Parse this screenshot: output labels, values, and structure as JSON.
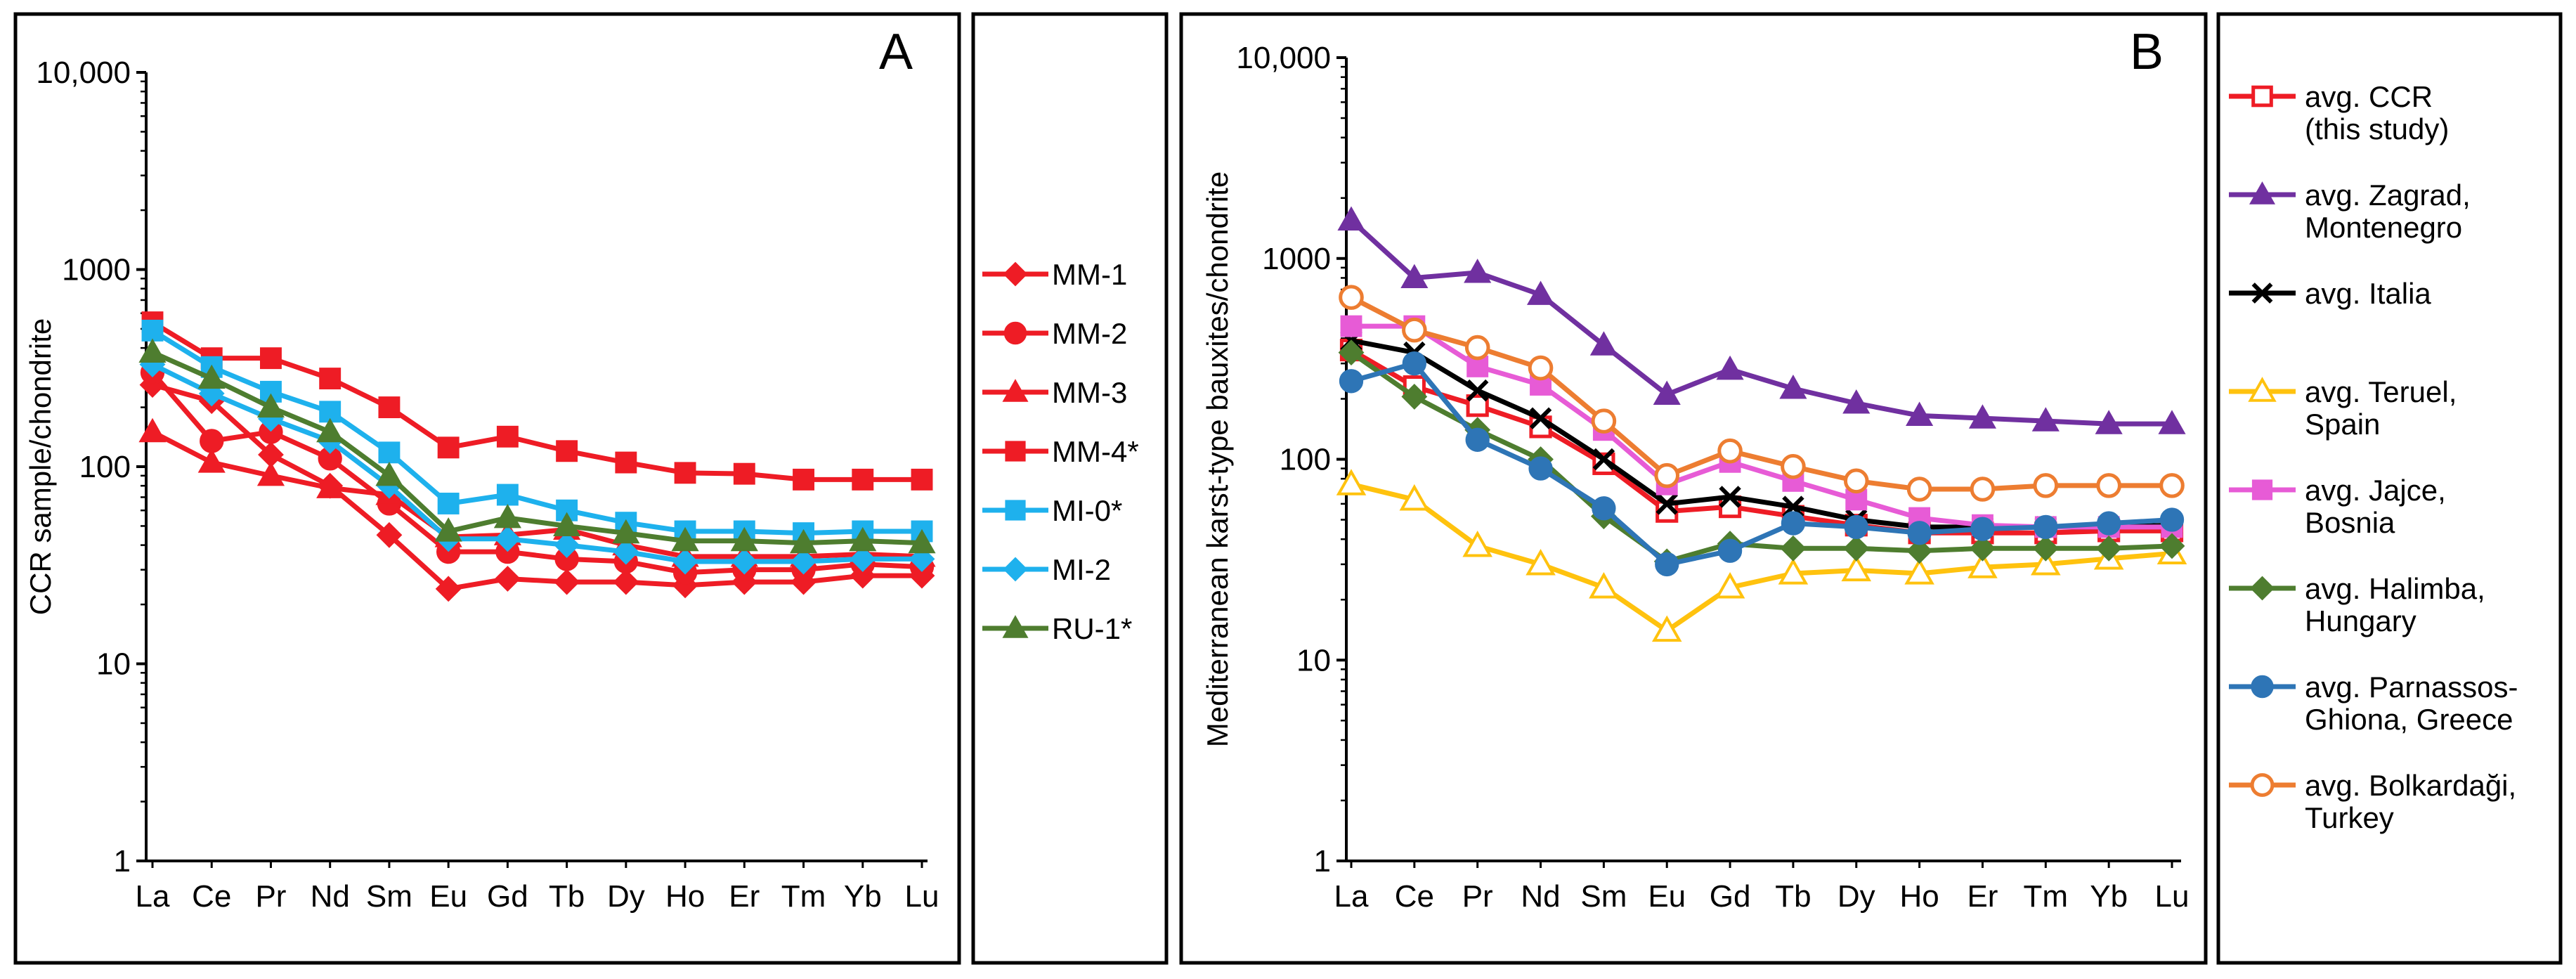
{
  "colors": {
    "red": "#ee1c25",
    "cyan": "#1eb1ed",
    "olive": "#4e7d2f",
    "purple": "#7030a0",
    "black": "#000000",
    "yellow": "#ffc20e",
    "magenta": "#e75bd6",
    "blue": "#2e75b6",
    "orange": "#ed7d31"
  },
  "chart_data": [
    {
      "type": "line",
      "panel_label": "A",
      "title": "",
      "xlabel": "",
      "ylabel": "CCR sample/chondrite",
      "yscale": "log",
      "ylim": [
        1,
        10000
      ],
      "y_ticks": [
        "1",
        "10",
        "100",
        "1000",
        "10,000"
      ],
      "grid": false,
      "legend_position": "right (separate box)",
      "categories": [
        "La",
        "Ce",
        "Pr",
        "Nd",
        "Sm",
        "Eu",
        "Gd",
        "Tb",
        "Dy",
        "Ho",
        "Er",
        "Tm",
        "Yb",
        "Lu"
      ],
      "series": [
        {
          "name": "MM-1",
          "color": "red",
          "marker": "diamond",
          "values": [
            260,
            215,
            115,
            80,
            45,
            24,
            27,
            26,
            26,
            25,
            26,
            26,
            28,
            28
          ]
        },
        {
          "name": "MM-2",
          "color": "red",
          "marker": "circle",
          "values": [
            300,
            135,
            150,
            110,
            65,
            37,
            37,
            34,
            33,
            29,
            30,
            30,
            32,
            31
          ]
        },
        {
          "name": "MM-3",
          "color": "red",
          "marker": "triangle",
          "values": [
            150,
            105,
            90,
            78,
            72,
            44,
            45,
            48,
            40,
            35,
            35,
            35,
            36,
            35
          ]
        },
        {
          "name": "MM-4*",
          "color": "red",
          "marker": "square",
          "values": [
            540,
            355,
            355,
            280,
            200,
            125,
            142,
            120,
            105,
            93,
            92,
            86,
            86,
            86
          ]
        },
        {
          "name": "MI-0*",
          "color": "cyan",
          "marker": "square",
          "values": [
            490,
            320,
            240,
            190,
            118,
            65,
            72,
            60,
            52,
            47,
            47,
            46,
            47,
            47
          ]
        },
        {
          "name": "MI-2",
          "color": "cyan",
          "marker": "diamond",
          "values": [
            330,
            235,
            175,
            135,
            80,
            43,
            43,
            40,
            37,
            33,
            33,
            33,
            34,
            34
          ]
        },
        {
          "name": "RU-1*",
          "color": "olive",
          "marker": "triangle",
          "values": [
            380,
            280,
            200,
            150,
            90,
            47,
            55,
            50,
            46,
            42,
            42,
            41,
            42,
            41
          ]
        }
      ]
    },
    {
      "type": "line",
      "panel_label": "B",
      "title": "",
      "xlabel": "",
      "ylabel": "Mediterranean karst-type bauxites/chondrite",
      "yscale": "log",
      "ylim": [
        1,
        10000
      ],
      "y_ticks": [
        "1",
        "10",
        "100",
        "1000",
        "10,000"
      ],
      "grid": false,
      "legend_position": "right (separate box)",
      "categories": [
        "La",
        "Ce",
        "Pr",
        "Nd",
        "Sm",
        "Eu",
        "Gd",
        "Tb",
        "Dy",
        "Ho",
        "Er",
        "Tm",
        "Yb",
        "Lu"
      ],
      "series": [
        {
          "name": "avg. CCR (this study)",
          "legend_lines": [
            "avg. CCR",
            "(this study)"
          ],
          "color": "red",
          "marker": "square-open",
          "values": [
            350,
            230,
            185,
            145,
            95,
            55,
            58,
            52,
            47,
            43,
            43,
            43,
            44,
            44
          ]
        },
        {
          "name": "avg. Zagrad, Montenegro",
          "legend_lines": [
            "avg. Zagrad,",
            "Montenegro"
          ],
          "color": "purple",
          "marker": "triangle",
          "values": [
            1550,
            800,
            850,
            660,
            370,
            210,
            280,
            225,
            190,
            165,
            160,
            155,
            150,
            150
          ]
        },
        {
          "name": "avg. Italia",
          "legend_lines": [
            "avg. Italia"
          ],
          "color": "black",
          "marker": "x",
          "values": [
            390,
            340,
            220,
            160,
            100,
            60,
            65,
            58,
            50,
            46,
            46,
            46,
            46,
            47
          ]
        },
        {
          "name": "avg. Teruel, Spain",
          "legend_lines": [
            "avg. Teruel,",
            "Spain"
          ],
          "color": "yellow",
          "marker": "triangle-open",
          "values": [
            75,
            63,
            37,
            30,
            23,
            14,
            23,
            27,
            28,
            27,
            29,
            30,
            32,
            34
          ]
        },
        {
          "name": "avg. Jajce, Bosnia",
          "legend_lines": [
            "avg. Jajce,",
            "Bosnia"
          ],
          "color": "magenta",
          "marker": "square",
          "values": [
            460,
            460,
            290,
            235,
            140,
            75,
            97,
            78,
            63,
            51,
            47,
            46,
            46,
            46
          ]
        },
        {
          "name": "avg. Halimba, Hungary",
          "legend_lines": [
            "avg. Halimba,",
            "Hungary"
          ],
          "color": "olive",
          "marker": "diamond",
          "values": [
            340,
            205,
            140,
            100,
            52,
            31,
            38,
            36,
            36,
            35,
            36,
            36,
            36,
            37
          ]
        },
        {
          "name": "avg. Parnassos-Ghiona, Greece",
          "legend_lines": [
            "avg. Parnassos-",
            "Ghiona, Greece"
          ],
          "color": "blue",
          "marker": "circle",
          "values": [
            245,
            300,
            125,
            90,
            57,
            30,
            35,
            48,
            46,
            43,
            45,
            46,
            48,
            50
          ]
        },
        {
          "name": "avg. Bolkardaği, Turkey",
          "legend_lines": [
            "avg. Bolkardaği,",
            "Turkey"
          ],
          "color": "orange",
          "marker": "circle-open",
          "values": [
            640,
            440,
            360,
            285,
            155,
            83,
            110,
            92,
            78,
            71,
            71,
            74,
            74,
            74
          ]
        }
      ]
    }
  ]
}
